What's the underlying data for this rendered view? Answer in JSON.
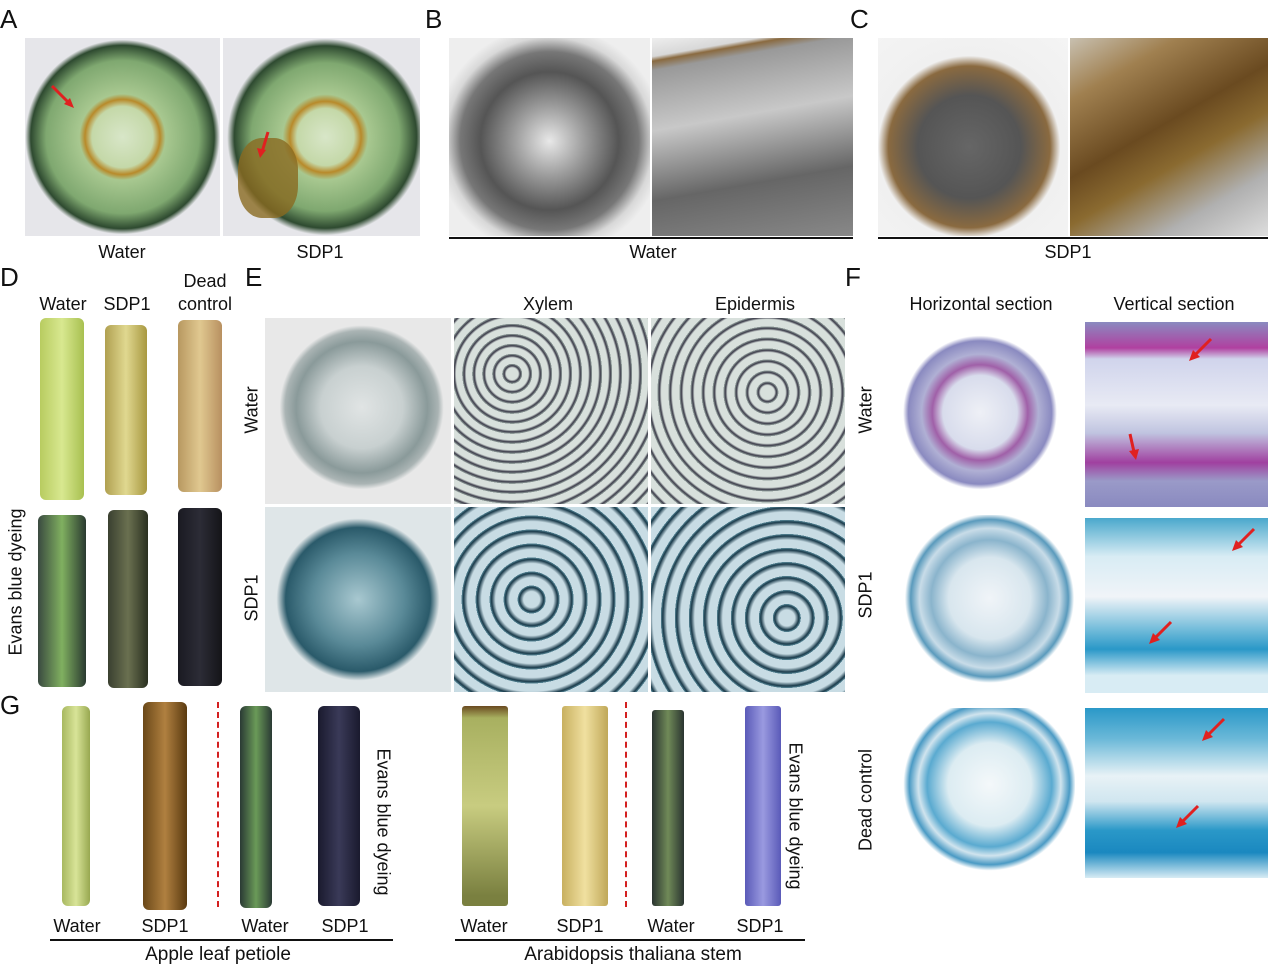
{
  "panels": {
    "A": {
      "label": "A",
      "captions": [
        "Water",
        "SDP1"
      ]
    },
    "B": {
      "label": "B",
      "caption": "Water"
    },
    "C": {
      "label": "C",
      "caption": "SDP1"
    },
    "D": {
      "label": "D",
      "columns": [
        "Water",
        "SDP1",
        "Dead",
        "control"
      ],
      "side_label": "Evans blue dyeing"
    },
    "E": {
      "label": "E",
      "columns": [
        "Xylem",
        "Epidermis"
      ],
      "rows": [
        "Water",
        "SDP1"
      ]
    },
    "F": {
      "label": "F",
      "columns": [
        "Horizontal section",
        "Vertical section"
      ],
      "rows": [
        "Water",
        "SDP1",
        "Dead control"
      ]
    },
    "G": {
      "label": "G",
      "groups": [
        {
          "title": "Apple leaf petiole",
          "items": [
            "Water",
            "SDP1",
            "Water",
            "SDP1"
          ],
          "side_label": "Evans blue dyeing"
        },
        {
          "title": "Arabidopsis thaliana stem",
          "items": [
            "Water",
            "SDP1",
            "Water",
            "SDP1"
          ],
          "side_label": "Evans blue dyeing"
        }
      ]
    }
  },
  "colors": {
    "arrow": "#e02020",
    "divider": "#d42020"
  }
}
